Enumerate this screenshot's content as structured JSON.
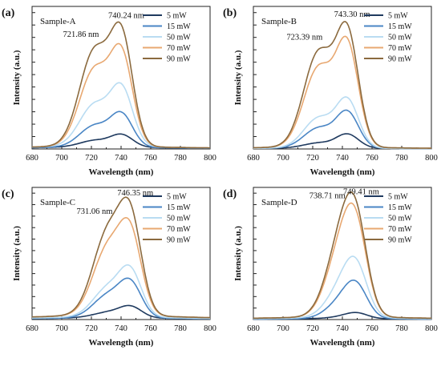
{
  "chart_data": [
    {
      "type": "line",
      "panel_label": "(a)",
      "sample_label": "Sample-A",
      "xlabel": "Wavelength (nm)",
      "ylabel": "Intensity (a.u.)",
      "xlim": [
        680,
        800
      ],
      "ylim": [
        0,
        1.1
      ],
      "xticks": [
        "680",
        "700",
        "720",
        "740",
        "760",
        "780",
        "800"
      ],
      "peak_annotations": [
        {
          "text": "721.86 nm",
          "x": 721.86
        },
        {
          "text": "740.24 nm",
          "x": 740.24
        }
      ],
      "legend_position": "top-right",
      "series": [
        {
          "name": "5 mW",
          "color": "#1f3a5f",
          "peaks": [
            {
              "x": 722,
              "y": 0.07
            },
            {
              "x": 740.5,
              "y": 0.12
            }
          ],
          "baseline": 0.02
        },
        {
          "name": "15 mW",
          "color": "#4a86c5",
          "peaks": [
            {
              "x": 722,
              "y": 0.19
            },
            {
              "x": 740.5,
              "y": 0.29
            }
          ],
          "baseline": 0.02
        },
        {
          "name": "50 mW",
          "color": "#b9dcf2",
          "peaks": [
            {
              "x": 722,
              "y": 0.36
            },
            {
              "x": 740.5,
              "y": 0.51
            }
          ],
          "baseline": 0.03
        },
        {
          "name": "70 mW",
          "color": "#e8a871",
          "peaks": [
            {
              "x": 722,
              "y": 0.64
            },
            {
              "x": 740.5,
              "y": 0.8
            }
          ],
          "baseline": 0.03
        },
        {
          "name": "90 mW",
          "color": "#8b6a3e",
          "peaks": [
            {
              "x": 722,
              "y": 0.79
            },
            {
              "x": 740.5,
              "y": 0.96
            }
          ],
          "baseline": 0.03
        }
      ]
    },
    {
      "type": "line",
      "panel_label": "(b)",
      "sample_label": "Sample-B",
      "xlabel": "Wavelength (nm)",
      "ylabel": "Intensity (a.u.)",
      "xlim": [
        680,
        800
      ],
      "ylim": [
        0,
        1.1
      ],
      "xticks": [
        "680",
        "700",
        "720",
        "740",
        "760",
        "780",
        "800"
      ],
      "peak_annotations": [
        {
          "text": "723.39 nm",
          "x": 723.39
        },
        {
          "text": "743.30 nm",
          "x": 743.3
        }
      ],
      "legend_position": "top-right",
      "series": [
        {
          "name": "5 mW",
          "color": "#1f3a5f",
          "peaks": [
            {
              "x": 724,
              "y": 0.05
            },
            {
              "x": 743.5,
              "y": 0.12
            }
          ],
          "baseline": 0.01
        },
        {
          "name": "15 mW",
          "color": "#4a86c5",
          "peaks": [
            {
              "x": 724,
              "y": 0.17
            },
            {
              "x": 743.5,
              "y": 0.3
            }
          ],
          "baseline": 0.01
        },
        {
          "name": "50 mW",
          "color": "#b9dcf2",
          "peaks": [
            {
              "x": 724,
              "y": 0.25
            },
            {
              "x": 743.5,
              "y": 0.4
            }
          ],
          "baseline": 0.01
        },
        {
          "name": "70 mW",
          "color": "#e8a871",
          "peaks": [
            {
              "x": 724,
              "y": 0.65
            },
            {
              "x": 743.5,
              "y": 0.86
            }
          ],
          "baseline": 0.02
        },
        {
          "name": "90 mW",
          "color": "#8b6a3e",
          "peaks": [
            {
              "x": 724,
              "y": 0.77
            },
            {
              "x": 743.5,
              "y": 0.97
            }
          ],
          "baseline": 0.02
        }
      ]
    },
    {
      "type": "line",
      "panel_label": "(c)",
      "sample_label": "Sample-C",
      "xlabel": "Wavelength (nm)",
      "ylabel": "Intensity (a.u.)",
      "xlim": [
        680,
        800
      ],
      "ylim": [
        0,
        1.1
      ],
      "xticks": [
        "680",
        "700",
        "720",
        "740",
        "760",
        "780",
        "800"
      ],
      "peak_annotations": [
        {
          "text": "731.06 nm",
          "x": 731.06
        },
        {
          "text": "746.35 nm",
          "x": 746.35
        }
      ],
      "legend_position": "top-right",
      "series": [
        {
          "name": "5 mW",
          "color": "#1f3a5f",
          "peaks": [
            {
              "x": 731,
              "y": 0.07
            },
            {
              "x": 746.5,
              "y": 0.12
            }
          ],
          "baseline": 0.02
        },
        {
          "name": "15 mW",
          "color": "#4a86c5",
          "peaks": [
            {
              "x": 731,
              "y": 0.23
            },
            {
              "x": 746.5,
              "y": 0.34
            }
          ],
          "baseline": 0.02
        },
        {
          "name": "50 mW",
          "color": "#b9dcf2",
          "peaks": [
            {
              "x": 731,
              "y": 0.3
            },
            {
              "x": 746.5,
              "y": 0.45
            }
          ],
          "baseline": 0.03
        },
        {
          "name": "70 mW",
          "color": "#e8a871",
          "peaks": [
            {
              "x": 731,
              "y": 0.66
            },
            {
              "x": 746.5,
              "y": 0.82
            }
          ],
          "baseline": 0.05
        },
        {
          "name": "90 mW",
          "color": "#8b6a3e",
          "peaks": [
            {
              "x": 731,
              "y": 0.8
            },
            {
              "x": 746.5,
              "y": 0.98
            }
          ],
          "baseline": 0.05
        }
      ]
    },
    {
      "type": "line",
      "panel_label": "(d)",
      "sample_label": "Sample-D",
      "xlabel": "Wavelength (nm)",
      "ylabel": "Intensity (a.u.)",
      "xlim": [
        680,
        800
      ],
      "ylim": [
        0,
        1.1
      ],
      "xticks": [
        "680",
        "700",
        "720",
        "740",
        "760",
        "780",
        "800"
      ],
      "peak_annotations": [
        {
          "text": "738.71 nm",
          "x": 738.71
        },
        {
          "text": "749.41 nm",
          "x": 749.41
        }
      ],
      "legend_position": "top-right",
      "series": [
        {
          "name": "5 mW",
          "color": "#1f3a5f",
          "peaks": [
            {
              "x": 740,
              "y": 0.04
            },
            {
              "x": 749.5,
              "y": 0.06
            }
          ],
          "baseline": 0.01
        },
        {
          "name": "15 mW",
          "color": "#4a86c5",
          "peaks": [
            {
              "x": 740,
              "y": 0.25
            },
            {
              "x": 749.5,
              "y": 0.32
            }
          ],
          "baseline": 0.01
        },
        {
          "name": "50 mW",
          "color": "#b9dcf2",
          "peaks": [
            {
              "x": 740,
              "y": 0.42
            },
            {
              "x": 749.5,
              "y": 0.51
            }
          ],
          "baseline": 0.02
        },
        {
          "name": "70 mW",
          "color": "#e8a871",
          "peaks": [
            {
              "x": 740,
              "y": 0.84
            },
            {
              "x": 749.5,
              "y": 0.91
            }
          ],
          "baseline": 0.03
        },
        {
          "name": "90 mW",
          "color": "#8b6a3e",
          "peaks": [
            {
              "x": 740,
              "y": 0.93
            },
            {
              "x": 749.5,
              "y": 0.99
            }
          ],
          "baseline": 0.03
        }
      ]
    }
  ]
}
